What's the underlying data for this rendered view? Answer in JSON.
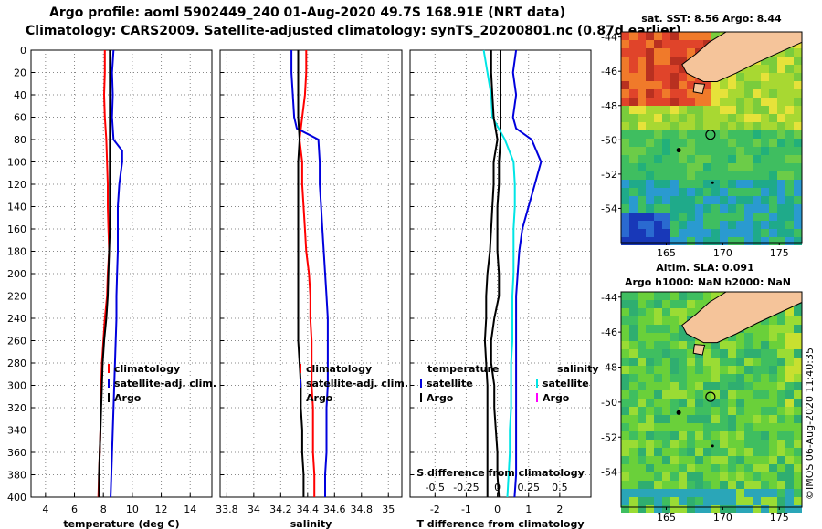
{
  "header": {
    "title_line1": "Argo profile: aoml 5902449_240 01-Aug-2020 49.7S 168.91E (NRT data)",
    "title_line2": "Climatology: CARS2009. Satellite-adjusted climatology: synTS_20200801.nc (0.87d earlier)"
  },
  "colors": {
    "climatology": "#ff0000",
    "satellite": "#0000dd",
    "argo": "#000000",
    "cyan": "#00e5e5",
    "magenta": "#ff00ff"
  },
  "depth_ticks": [
    0,
    20,
    40,
    60,
    80,
    100,
    120,
    140,
    160,
    180,
    200,
    220,
    240,
    260,
    280,
    300,
    320,
    340,
    360,
    380,
    400
  ],
  "temperature_legend": {
    "clim": "climatology",
    "sat": "satellite-adj. clim.",
    "argo": "Argo"
  },
  "salinity_legend": {
    "clim": "climatology",
    "sat": "satellite-adj. clim.",
    "argo": "Argo"
  },
  "diff_legend": {
    "temp_head": "temperature",
    "sal_head": "salinity",
    "sat": "satellite",
    "argo": "Argo",
    "s_sat": "satellite",
    "s_argo": "Argo"
  },
  "chart_data": [
    {
      "type": "line",
      "title": "",
      "xlabel": "temperature (deg C)",
      "ylabel": "",
      "xlim": [
        3,
        15.5
      ],
      "ylim": [
        400,
        0
      ],
      "xticks": [
        4,
        6,
        8,
        10,
        12,
        14
      ],
      "series": [
        {
          "name": "climatology",
          "depth": [
            0,
            20,
            40,
            60,
            80,
            100,
            120,
            140,
            160,
            180,
            200,
            220,
            240,
            260,
            280,
            300,
            320,
            340,
            360,
            380,
            400
          ],
          "values": [
            8.1,
            8.1,
            8.05,
            8.1,
            8.2,
            8.25,
            8.3,
            8.3,
            8.35,
            8.4,
            8.3,
            8.25,
            8.1,
            8.0,
            7.9,
            7.85,
            7.8,
            7.8,
            7.75,
            7.7,
            7.65
          ]
        },
        {
          "name": "satellite-adj. clim.",
          "depth": [
            0,
            20,
            40,
            60,
            80,
            90,
            100,
            120,
            140,
            160,
            180,
            200,
            220,
            240,
            260,
            280,
            300,
            320,
            340,
            360,
            380,
            400
          ],
          "values": [
            8.7,
            8.6,
            8.65,
            8.6,
            8.7,
            9.3,
            9.3,
            9.1,
            9.0,
            9.0,
            9.0,
            8.95,
            8.9,
            8.9,
            8.85,
            8.8,
            8.75,
            8.7,
            8.65,
            8.6,
            8.55,
            8.5
          ]
        },
        {
          "name": "Argo",
          "depth": [
            0,
            20,
            40,
            60,
            80,
            100,
            120,
            140,
            160,
            180,
            200,
            220,
            240,
            260,
            280,
            300,
            320,
            340,
            360,
            380,
            400
          ],
          "values": [
            8.45,
            8.45,
            8.45,
            8.45,
            8.45,
            8.45,
            8.45,
            8.45,
            8.45,
            8.4,
            8.35,
            8.3,
            8.2,
            8.05,
            7.95,
            7.9,
            7.85,
            7.8,
            7.75,
            7.7,
            7.7
          ]
        }
      ]
    },
    {
      "type": "line",
      "title": "",
      "xlabel": "salinity",
      "ylabel": "",
      "xlim": [
        33.75,
        35.1
      ],
      "ylim": [
        400,
        0
      ],
      "xticks": [
        33.8,
        34,
        34.2,
        34.4,
        34.6,
        34.8,
        35
      ],
      "xticklabels": [
        "33.8",
        "34",
        "34.2",
        "34.4",
        "34.6",
        "34.8",
        "35"
      ],
      "series": [
        {
          "name": "climatology",
          "depth": [
            0,
            20,
            40,
            60,
            80,
            100,
            120,
            140,
            160,
            180,
            200,
            220,
            240,
            260,
            280,
            300,
            320,
            340,
            360,
            380,
            400
          ],
          "values": [
            34.39,
            34.39,
            34.38,
            34.36,
            34.34,
            34.36,
            34.36,
            34.37,
            34.38,
            34.39,
            34.41,
            34.42,
            34.42,
            34.43,
            34.43,
            34.43,
            34.44,
            34.44,
            34.44,
            34.45,
            34.45
          ]
        },
        {
          "name": "satellite-adj. clim.",
          "depth": [
            0,
            20,
            40,
            60,
            70,
            80,
            100,
            120,
            140,
            160,
            180,
            200,
            220,
            240,
            260,
            280,
            300,
            320,
            340,
            360,
            380,
            400
          ],
          "values": [
            34.28,
            34.28,
            34.29,
            34.3,
            34.32,
            34.48,
            34.49,
            34.49,
            34.5,
            34.51,
            34.52,
            34.53,
            34.54,
            34.55,
            34.55,
            34.55,
            34.55,
            34.54,
            34.54,
            34.54,
            34.53,
            34.53
          ]
        },
        {
          "name": "Argo",
          "depth": [
            0,
            20,
            40,
            60,
            80,
            100,
            120,
            140,
            160,
            180,
            200,
            220,
            240,
            260,
            280,
            300,
            320,
            340,
            360,
            380,
            400
          ],
          "values": [
            34.33,
            34.33,
            34.33,
            34.33,
            34.34,
            34.33,
            34.33,
            34.33,
            34.33,
            34.33,
            34.33,
            34.33,
            34.33,
            34.33,
            34.34,
            34.35,
            34.35,
            34.36,
            34.36,
            34.37,
            34.37
          ]
        }
      ]
    },
    {
      "type": "line",
      "title": "",
      "xlabel": "T difference from climatology",
      "ylabel": "",
      "xlim": [
        -2.8,
        3
      ],
      "ylim": [
        400,
        0
      ],
      "xticks": [
        -2,
        -1,
        0,
        1,
        2
      ],
      "top_axis_label": "S difference from climatology",
      "top_ticks": [
        -0.5,
        -0.25,
        0,
        0.25,
        0.5
      ],
      "series": [
        {
          "name": "temperature satellite",
          "depth": [
            0,
            20,
            40,
            60,
            70,
            80,
            100,
            120,
            140,
            160,
            180,
            200,
            220,
            240,
            260,
            280,
            300,
            320,
            340,
            360,
            380,
            400
          ],
          "values": [
            0.6,
            0.5,
            0.6,
            0.5,
            0.6,
            1.1,
            1.4,
            1.2,
            1.0,
            0.8,
            0.7,
            0.65,
            0.6,
            0.6,
            0.6,
            0.6,
            0.6,
            0.6,
            0.6,
            0.6,
            0.6,
            0.55
          ]
        },
        {
          "name": "temperature Argo",
          "depth": [
            0,
            20,
            40,
            60,
            80,
            100,
            120,
            140,
            160,
            180,
            200,
            220,
            240,
            260,
            280,
            300,
            320,
            340,
            360,
            380,
            400
          ],
          "values": [
            0.1,
            0.1,
            0.1,
            0.1,
            0.1,
            0.05,
            0.05,
            0.0,
            0.0,
            0.0,
            0.05,
            0.05,
            -0.1,
            -0.2,
            -0.2,
            -0.1,
            -0.1,
            -0.05,
            0.0,
            0.0,
            0.05
          ]
        },
        {
          "name": "salinity satellite",
          "depth": [
            0,
            20,
            40,
            60,
            80,
            100,
            120,
            140,
            160,
            180,
            200,
            220,
            240,
            260,
            280,
            300,
            320,
            340,
            360,
            380,
            400
          ],
          "values": [
            -0.11,
            -0.08,
            -0.05,
            -0.04,
            0.06,
            0.13,
            0.14,
            0.14,
            0.13,
            0.13,
            0.13,
            0.12,
            0.12,
            0.12,
            0.11,
            0.11,
            0.11,
            0.1,
            0.1,
            0.09,
            0.08
          ]
        },
        {
          "name": "salinity Argo",
          "depth": [
            0,
            20,
            40,
            60,
            80,
            100,
            120,
            140,
            160,
            180,
            200,
            220,
            240,
            260,
            280,
            300,
            320,
            340,
            360,
            380,
            400
          ],
          "values": [
            -0.05,
            -0.05,
            -0.04,
            -0.03,
            0.0,
            -0.03,
            -0.03,
            -0.04,
            -0.05,
            -0.06,
            -0.08,
            -0.09,
            -0.09,
            -0.1,
            -0.09,
            -0.08,
            -0.08,
            -0.08,
            -0.08,
            -0.08,
            -0.08
          ]
        }
      ]
    },
    {
      "type": "heatmap",
      "title": "sat. SST: 8.56 Argo: 8.44",
      "lon_ticks": [
        165,
        170,
        175
      ],
      "lat_ticks": [
        -44,
        -46,
        -48,
        -50,
        -52,
        -54
      ],
      "argo_position": [
        168.91,
        -49.7
      ]
    },
    {
      "type": "heatmap",
      "title": "Altim. SLA: 0.091",
      "subtitle": "Argo h1000: NaN h2000: NaN",
      "lon_ticks": [
        165,
        170,
        175
      ],
      "lat_ticks": [
        -44,
        -46,
        -48,
        -50,
        -52,
        -54
      ],
      "argo_position": [
        168.91,
        -49.7
      ]
    }
  ],
  "footer": {
    "stamp": "©IMOS 06-Aug-2020 11:40:35"
  }
}
